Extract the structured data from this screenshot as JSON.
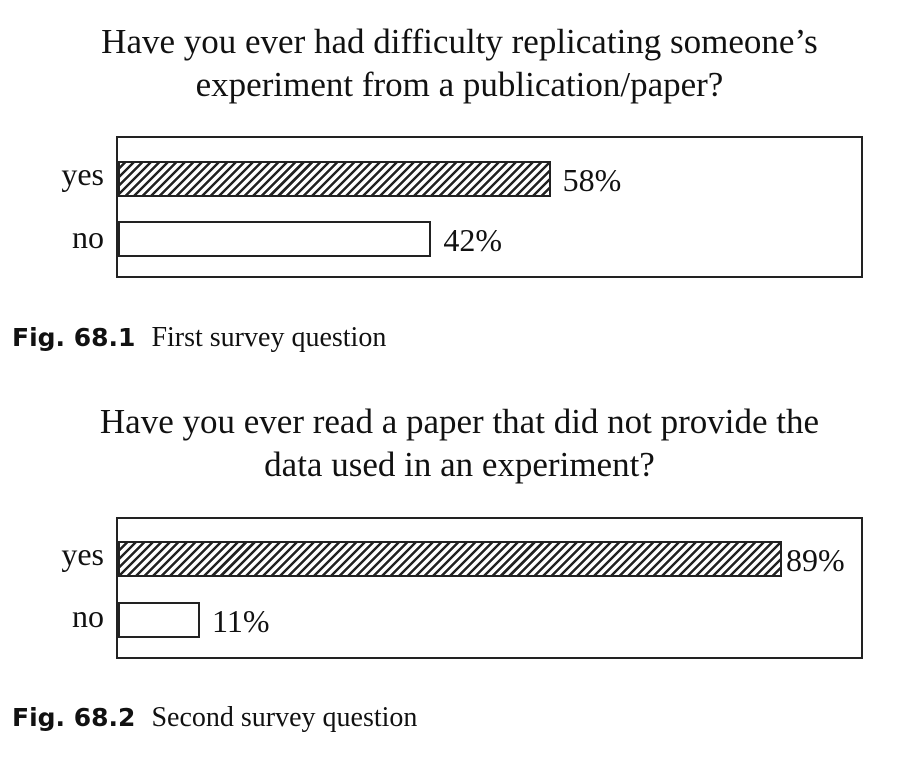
{
  "chart_data": [
    {
      "type": "bar",
      "orientation": "horizontal",
      "title_lines": [
        "Have you ever had difficulty replicating someone’s",
        "experiment from a publication/paper?"
      ],
      "categories": [
        "yes",
        "no"
      ],
      "values": [
        58,
        42
      ],
      "value_labels": [
        "58%",
        "42%"
      ],
      "xlim": [
        0,
        100
      ],
      "patterns": [
        "hatched",
        "plain"
      ],
      "caption_number": "Fig. 68.1",
      "caption_text": "First survey question"
    },
    {
      "type": "bar",
      "orientation": "horizontal",
      "title_lines": [
        "Have you ever read a paper that did not provide the",
        "data used in an experiment?"
      ],
      "categories": [
        "yes",
        "no"
      ],
      "values": [
        89,
        11
      ],
      "value_labels": [
        "89%",
        "11%"
      ],
      "xlim": [
        0,
        100
      ],
      "patterns": [
        "hatched",
        "plain"
      ],
      "caption_number": "Fig. 68.2",
      "caption_text": "Second survey question"
    }
  ]
}
